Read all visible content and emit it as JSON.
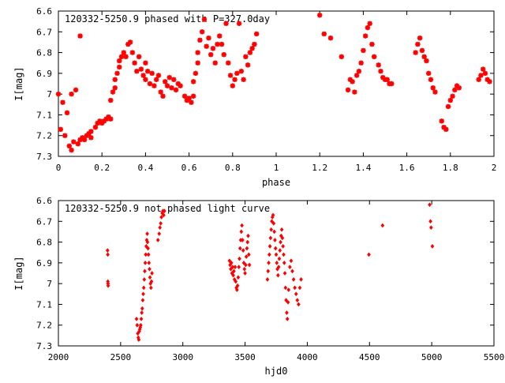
{
  "chart_data": [
    {
      "type": "scatter",
      "title": "120332-5250.9 phased with P=327.0day",
      "xlabel": "phase",
      "ylabel": "I[mag]",
      "xlim": [
        0,
        2
      ],
      "ylim": [
        6.6,
        7.3
      ],
      "y_inverted": true,
      "grid": false,
      "marker_color": "#ff0000",
      "marker": "star",
      "x_ticks": [
        "0",
        "0.2",
        "0.4",
        "0.6",
        "0.8",
        "1",
        "1.2",
        "1.4",
        "1.6",
        "1.8",
        "2"
      ],
      "y_ticks": [
        "6.6",
        "6.7",
        "6.8",
        "6.9",
        "7",
        "7.1",
        "7.2",
        "7.3"
      ],
      "points": [
        [
          0.0,
          7.0
        ],
        [
          0.01,
          7.17
        ],
        [
          0.02,
          7.04
        ],
        [
          0.03,
          7.2
        ],
        [
          0.04,
          7.09
        ],
        [
          0.05,
          7.25
        ],
        [
          0.06,
          7.27
        ],
        [
          0.06,
          7.0
        ],
        [
          0.07,
          7.23
        ],
        [
          0.08,
          6.98
        ],
        [
          0.09,
          7.24
        ],
        [
          0.1,
          6.72
        ],
        [
          0.1,
          7.22
        ],
        [
          0.11,
          7.21
        ],
        [
          0.12,
          7.22
        ],
        [
          0.13,
          7.2
        ],
        [
          0.14,
          7.19
        ],
        [
          0.15,
          7.18
        ],
        [
          0.15,
          7.21
        ],
        [
          0.17,
          7.16
        ],
        [
          0.18,
          7.14
        ],
        [
          0.19,
          7.13
        ],
        [
          0.2,
          7.14
        ],
        [
          0.21,
          7.13
        ],
        [
          0.22,
          7.12
        ],
        [
          0.23,
          7.11
        ],
        [
          0.24,
          7.12
        ],
        [
          0.24,
          7.03
        ],
        [
          0.25,
          6.99
        ],
        [
          0.26,
          6.97
        ],
        [
          0.26,
          6.93
        ],
        [
          0.27,
          6.9
        ],
        [
          0.28,
          6.87
        ],
        [
          0.28,
          6.84
        ],
        [
          0.29,
          6.82
        ],
        [
          0.3,
          6.8
        ],
        [
          0.31,
          6.82
        ],
        [
          0.32,
          6.76
        ],
        [
          0.33,
          6.75
        ],
        [
          0.34,
          6.8
        ],
        [
          0.35,
          6.85
        ],
        [
          0.36,
          6.89
        ],
        [
          0.37,
          6.82
        ],
        [
          0.38,
          6.88
        ],
        [
          0.39,
          6.91
        ],
        [
          0.4,
          6.85
        ],
        [
          0.4,
          6.93
        ],
        [
          0.41,
          6.89
        ],
        [
          0.42,
          6.95
        ],
        [
          0.43,
          6.9
        ],
        [
          0.44,
          6.96
        ],
        [
          0.45,
          6.93
        ],
        [
          0.46,
          6.91
        ],
        [
          0.47,
          6.99
        ],
        [
          0.48,
          7.01
        ],
        [
          0.49,
          6.94
        ],
        [
          0.5,
          6.96
        ],
        [
          0.51,
          6.92
        ],
        [
          0.52,
          6.97
        ],
        [
          0.53,
          6.93
        ],
        [
          0.54,
          6.98
        ],
        [
          0.55,
          6.95
        ],
        [
          0.56,
          6.96
        ],
        [
          0.58,
          7.01
        ],
        [
          0.59,
          7.03
        ],
        [
          0.6,
          7.02
        ],
        [
          0.61,
          7.04
        ],
        [
          0.62,
          7.01
        ],
        [
          0.62,
          6.94
        ],
        [
          0.63,
          6.9
        ],
        [
          0.64,
          6.85
        ],
        [
          0.64,
          6.8
        ],
        [
          0.65,
          6.74
        ],
        [
          0.66,
          6.7
        ],
        [
          0.67,
          6.64
        ],
        [
          0.68,
          6.77
        ],
        [
          0.69,
          6.73
        ],
        [
          0.7,
          6.81
        ],
        [
          0.71,
          6.78
        ],
        [
          0.72,
          6.85
        ],
        [
          0.73,
          6.76
        ],
        [
          0.74,
          6.72
        ],
        [
          0.75,
          6.76
        ],
        [
          0.76,
          6.81
        ],
        [
          0.77,
          6.66
        ],
        [
          0.78,
          6.85
        ],
        [
          0.79,
          6.91
        ],
        [
          0.8,
          6.96
        ],
        [
          0.81,
          6.93
        ],
        [
          0.82,
          6.9
        ],
        [
          0.83,
          6.66
        ],
        [
          0.84,
          6.89
        ],
        [
          0.85,
          6.93
        ],
        [
          0.86,
          6.82
        ],
        [
          0.87,
          6.86
        ],
        [
          0.88,
          6.8
        ],
        [
          0.89,
          6.78
        ],
        [
          0.9,
          6.76
        ],
        [
          0.91,
          6.71
        ],
        [
          1.2,
          6.62
        ],
        [
          1.22,
          6.71
        ],
        [
          1.25,
          6.73
        ],
        [
          1.3,
          6.82
        ],
        [
          1.33,
          6.98
        ],
        [
          1.34,
          6.93
        ],
        [
          1.35,
          6.94
        ],
        [
          1.36,
          6.99
        ],
        [
          1.37,
          6.91
        ],
        [
          1.38,
          6.89
        ],
        [
          1.39,
          6.85
        ],
        [
          1.4,
          6.79
        ],
        [
          1.41,
          6.72
        ],
        [
          1.42,
          6.68
        ],
        [
          1.43,
          6.66
        ],
        [
          1.44,
          6.76
        ],
        [
          1.45,
          6.82
        ],
        [
          1.47,
          6.86
        ],
        [
          1.48,
          6.89
        ],
        [
          1.49,
          6.92
        ],
        [
          1.5,
          6.93
        ],
        [
          1.51,
          6.93
        ],
        [
          1.52,
          6.95
        ],
        [
          1.53,
          6.95
        ],
        [
          1.64,
          6.8
        ],
        [
          1.65,
          6.76
        ],
        [
          1.66,
          6.73
        ],
        [
          1.67,
          6.79
        ],
        [
          1.68,
          6.82
        ],
        [
          1.69,
          6.84
        ],
        [
          1.7,
          6.9
        ],
        [
          1.71,
          6.93
        ],
        [
          1.72,
          6.97
        ],
        [
          1.73,
          6.99
        ],
        [
          1.76,
          7.13
        ],
        [
          1.77,
          7.16
        ],
        [
          1.78,
          7.17
        ],
        [
          1.79,
          7.06
        ],
        [
          1.8,
          7.03
        ],
        [
          1.81,
          7.01
        ],
        [
          1.82,
          6.98
        ],
        [
          1.83,
          6.96
        ],
        [
          1.84,
          6.97
        ],
        [
          1.93,
          6.93
        ],
        [
          1.94,
          6.91
        ],
        [
          1.95,
          6.88
        ],
        [
          1.96,
          6.9
        ],
        [
          1.97,
          6.93
        ],
        [
          1.98,
          6.94
        ]
      ]
    },
    {
      "type": "scatter",
      "title": "120332-5250.9 not phased light curve",
      "xlabel": "hjd0",
      "ylabel": "I[mag]",
      "xlim": [
        2000,
        5500
      ],
      "ylim": [
        6.6,
        7.3
      ],
      "y_inverted": true,
      "grid": false,
      "marker_color": "#ff0000",
      "marker": "diamond",
      "x_ticks": [
        "2000",
        "2500",
        "3000",
        "3500",
        "4000",
        "4500",
        "5000",
        "5500"
      ],
      "y_ticks": [
        "6.6",
        "6.7",
        "6.8",
        "6.9",
        "7",
        "7.1",
        "7.2",
        "7.3"
      ],
      "points": [
        [
          2395,
          6.84
        ],
        [
          2397,
          6.86
        ],
        [
          2398,
          6.99
        ],
        [
          2399,
          7.0
        ],
        [
          2400,
          7.01
        ],
        [
          2628,
          7.17
        ],
        [
          2633,
          7.2
        ],
        [
          2638,
          7.24
        ],
        [
          2642,
          7.26
        ],
        [
          2646,
          7.27
        ],
        [
          2650,
          7.23
        ],
        [
          2654,
          7.22
        ],
        [
          2658,
          7.21
        ],
        [
          2662,
          7.2
        ],
        [
          2666,
          7.17
        ],
        [
          2670,
          7.14
        ],
        [
          2674,
          7.12
        ],
        [
          2678,
          7.08
        ],
        [
          2682,
          7.05
        ],
        [
          2686,
          7.02
        ],
        [
          2690,
          6.98
        ],
        [
          2694,
          6.94
        ],
        [
          2698,
          6.9
        ],
        [
          2702,
          6.86
        ],
        [
          2706,
          6.82
        ],
        [
          2710,
          6.79
        ],
        [
          2714,
          6.76
        ],
        [
          2716,
          6.8
        ],
        [
          2720,
          6.83
        ],
        [
          2724,
          6.86
        ],
        [
          2728,
          6.9
        ],
        [
          2732,
          6.93
        ],
        [
          2736,
          6.97
        ],
        [
          2740,
          7.0
        ],
        [
          2744,
          7.02
        ],
        [
          2748,
          6.99
        ],
        [
          2752,
          6.95
        ],
        [
          2800,
          6.79
        ],
        [
          2810,
          6.76
        ],
        [
          2816,
          6.73
        ],
        [
          2822,
          6.71
        ],
        [
          2828,
          6.68
        ],
        [
          2834,
          6.66
        ],
        [
          2840,
          6.65
        ],
        [
          2846,
          6.67
        ],
        [
          2852,
          6.65
        ],
        [
          3375,
          6.89
        ],
        [
          3380,
          6.91
        ],
        [
          3385,
          6.93
        ],
        [
          3390,
          6.9
        ],
        [
          3395,
          6.95
        ],
        [
          3400,
          6.92
        ],
        [
          3405,
          6.96
        ],
        [
          3410,
          6.94
        ],
        [
          3415,
          6.98
        ],
        [
          3420,
          6.92
        ],
        [
          3425,
          6.99
        ],
        [
          3430,
          7.02
        ],
        [
          3435,
          7.03
        ],
        [
          3440,
          7.01
        ],
        [
          3445,
          6.97
        ],
        [
          3450,
          6.92
        ],
        [
          3455,
          6.88
        ],
        [
          3460,
          6.83
        ],
        [
          3465,
          6.79
        ],
        [
          3470,
          6.75
        ],
        [
          3475,
          6.72
        ],
        [
          3480,
          6.79
        ],
        [
          3485,
          6.84
        ],
        [
          3490,
          6.9
        ],
        [
          3495,
          6.93
        ],
        [
          3500,
          6.95
        ],
        [
          3505,
          6.91
        ],
        [
          3510,
          6.87
        ],
        [
          3515,
          6.83
        ],
        [
          3520,
          6.8
        ],
        [
          3525,
          6.77
        ],
        [
          3530,
          6.86
        ],
        [
          3535,
          6.91
        ],
        [
          3680,
          6.98
        ],
        [
          3685,
          6.94
        ],
        [
          3690,
          6.9
        ],
        [
          3695,
          6.86
        ],
        [
          3700,
          6.82
        ],
        [
          3705,
          6.78
        ],
        [
          3710,
          6.74
        ],
        [
          3715,
          6.7
        ],
        [
          3720,
          6.68
        ],
        [
          3725,
          6.67
        ],
        [
          3730,
          6.71
        ],
        [
          3735,
          6.75
        ],
        [
          3740,
          6.79
        ],
        [
          3745,
          6.83
        ],
        [
          3750,
          6.86
        ],
        [
          3755,
          6.9
        ],
        [
          3760,
          6.93
        ],
        [
          3765,
          6.96
        ],
        [
          3770,
          6.92
        ],
        [
          3775,
          6.88
        ],
        [
          3780,
          6.84
        ],
        [
          3785,
          6.8
        ],
        [
          3790,
          6.77
        ],
        [
          3795,
          6.74
        ],
        [
          3800,
          6.78
        ],
        [
          3805,
          6.82
        ],
        [
          3810,
          6.86
        ],
        [
          3815,
          6.9
        ],
        [
          3820,
          6.95
        ],
        [
          3825,
          7.02
        ],
        [
          3830,
          7.08
        ],
        [
          3835,
          7.14
        ],
        [
          3840,
          7.17
        ],
        [
          3845,
          7.09
        ],
        [
          3850,
          7.03
        ],
        [
          3860,
          6.92
        ],
        [
          3870,
          6.89
        ],
        [
          3880,
          6.94
        ],
        [
          3890,
          6.98
        ],
        [
          3900,
          7.02
        ],
        [
          3910,
          7.05
        ],
        [
          3920,
          7.08
        ],
        [
          3930,
          7.1
        ],
        [
          3940,
          7.02
        ],
        [
          3950,
          6.98
        ],
        [
          4495,
          6.86
        ],
        [
          4605,
          6.72
        ],
        [
          4983,
          6.62
        ],
        [
          4990,
          6.7
        ],
        [
          4995,
          6.73
        ],
        [
          5005,
          6.82
        ]
      ]
    }
  ]
}
